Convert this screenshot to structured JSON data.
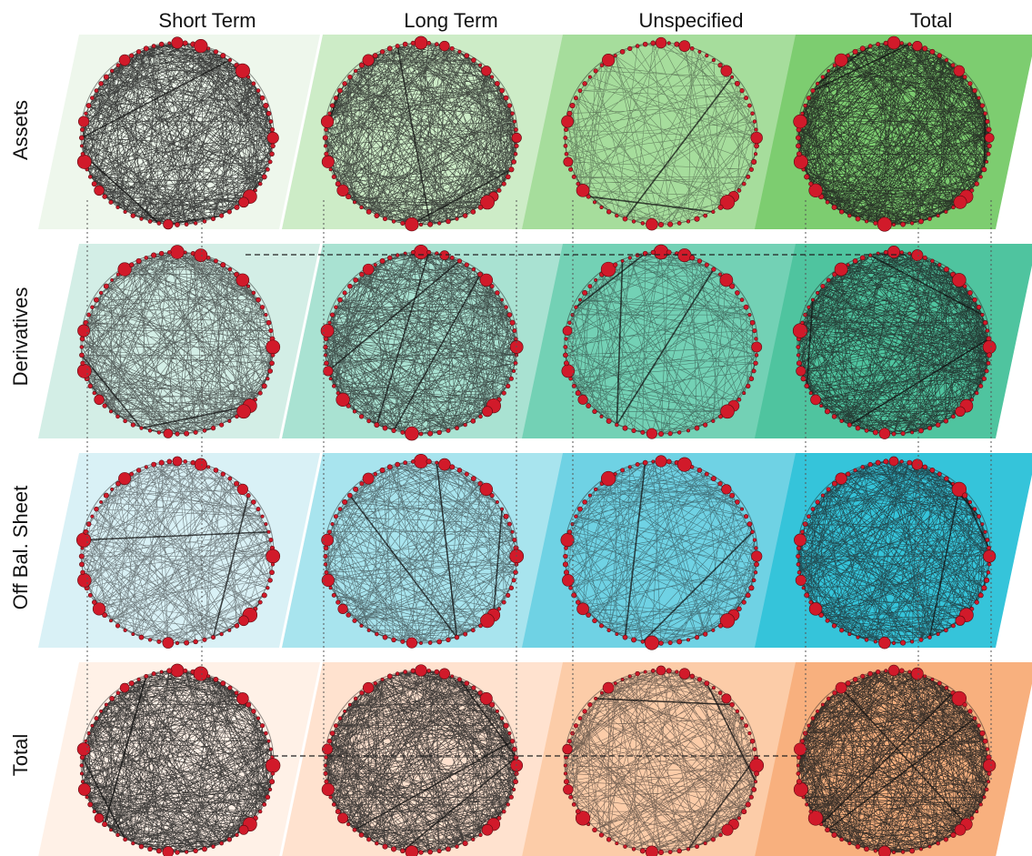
{
  "columns": [
    "Short Term",
    "Long Term",
    "Unspecified",
    "Total"
  ],
  "rows": [
    "Assets",
    "Derivatives",
    "Off Bal. Sheet",
    "Total"
  ],
  "panel_colors": [
    [
      "#eef7ec",
      "#cdecc7",
      "#a6dd9c",
      "#7dcd70"
    ],
    [
      "#d3eee6",
      "#a9e2d2",
      "#73d1b5",
      "#4fc49f"
    ],
    [
      "#d9f1f6",
      "#a8e4ee",
      "#6fd2e4",
      "#35c4da"
    ],
    [
      "#fff1e7",
      "#ffe2cf",
      "#fccca8",
      "#f8b07e"
    ]
  ],
  "edge_density": [
    [
      0.95,
      0.85,
      0.22,
      0.98
    ],
    [
      0.65,
      0.72,
      0.3,
      0.85
    ],
    [
      0.4,
      0.45,
      0.32,
      0.7
    ],
    [
      0.98,
      0.95,
      0.48,
      0.99
    ]
  ],
  "node_color": "#d11a2a",
  "edge_color": "#1a1a1a"
}
